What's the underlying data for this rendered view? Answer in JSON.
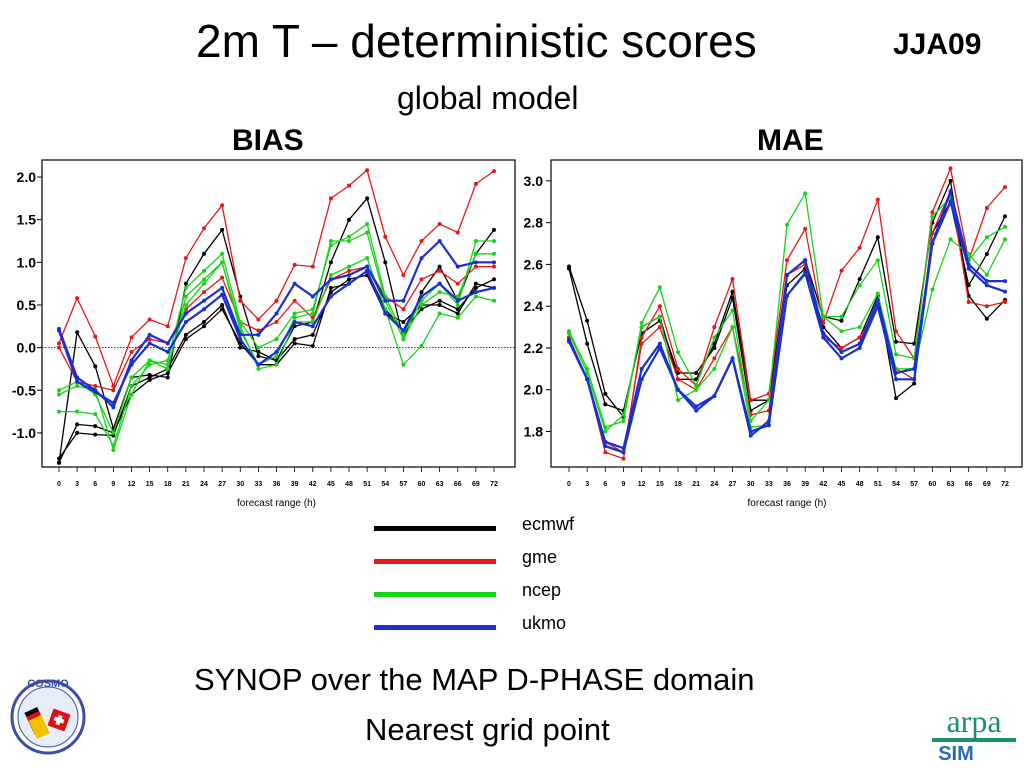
{
  "header": {
    "title": "2m T – deterministic scores",
    "subtitle": "global model",
    "season": "JJA09"
  },
  "footer": {
    "line1": "SYNOP over the MAP D-PHASE domain",
    "line2": "Nearest grid point"
  },
  "logos": {
    "left": "COSMO",
    "right_top": "arpa",
    "right_bottom": "SIM"
  },
  "colors": {
    "ecmwf": "#000000",
    "gme": "#e81818",
    "ncep": "#18d418",
    "ukmo": "#1a2fd0"
  },
  "legend": [
    {
      "label": "ecmwf",
      "color": "#000000"
    },
    {
      "label": "gme",
      "color": "#e81818"
    },
    {
      "label": "ncep",
      "color": "#18d418"
    },
    {
      "label": "ukmo",
      "color": "#1a2fd0"
    }
  ],
  "chart_data": [
    {
      "type": "line",
      "title": "BIAS",
      "xlabel": "forecast range (h)",
      "ylabel": "",
      "x": [
        0,
        3,
        6,
        9,
        12,
        15,
        18,
        21,
        24,
        27,
        30,
        33,
        36,
        39,
        42,
        45,
        48,
        51,
        54,
        57,
        60,
        63,
        66,
        69,
        72
      ],
      "x_tick_labels": [
        "0",
        "3",
        "6",
        "9",
        "12",
        "15",
        "18",
        "21",
        "24",
        "27",
        "30",
        "33",
        "36",
        "39",
        "42",
        "45",
        "48",
        "51",
        "54",
        "57",
        "60",
        "63",
        "66",
        "69",
        "72"
      ],
      "y_ticks": [
        2.0,
        1.5,
        1.0,
        0.5,
        0.0,
        -0.5,
        -1.0
      ],
      "y_tick_labels": [
        "2.0",
        "1.5",
        "1.0",
        "0.5",
        "0.0",
        "-0.5",
        "-1.0"
      ],
      "ylim": [
        -1.4,
        2.2
      ],
      "zero_line": true,
      "series": [
        {
          "name": "ecmwf",
          "values": [
            -1.35,
            0.18,
            -0.22,
            -0.95,
            -0.35,
            -0.32,
            -0.35,
            0.75,
            1.1,
            1.38,
            0.6,
            -0.1,
            -0.15,
            0.25,
            0.3,
            1.0,
            1.5,
            1.75,
            1.0,
            0.1,
            0.65,
            0.95,
            0.55,
            1.1,
            1.38
          ]
        },
        {
          "name": "ecmwf",
          "values": [
            -1.35,
            -0.9,
            -0.92,
            -1.0,
            -0.55,
            -0.38,
            -0.3,
            0.1,
            0.25,
            0.45,
            0.05,
            -0.2,
            -0.2,
            0.05,
            0.02,
            0.7,
            0.75,
            0.9,
            0.45,
            0.2,
            0.45,
            0.55,
            0.45,
            0.7,
            0.8
          ]
        },
        {
          "name": "ecmwf",
          "values": [
            -1.3,
            -1.0,
            -1.02,
            -1.03,
            -0.45,
            -0.35,
            -0.25,
            0.15,
            0.3,
            0.5,
            0.0,
            -0.05,
            -0.15,
            0.1,
            0.15,
            0.65,
            0.8,
            0.85,
            0.4,
            0.3,
            0.5,
            0.5,
            0.4,
            0.75,
            0.7
          ]
        },
        {
          "name": "gme",
          "values": [
            0.05,
            0.58,
            0.13,
            -0.45,
            0.12,
            0.33,
            0.25,
            1.05,
            1.4,
            1.67,
            0.55,
            0.33,
            0.55,
            0.97,
            0.95,
            1.75,
            1.9,
            2.08,
            1.3,
            0.85,
            1.25,
            1.45,
            1.35,
            1.92,
            2.07
          ]
        },
        {
          "name": "gme",
          "values": [
            0.0,
            -0.4,
            -0.45,
            -0.5,
            -0.05,
            0.1,
            0.05,
            0.45,
            0.65,
            0.82,
            0.3,
            0.2,
            0.3,
            0.55,
            0.35,
            0.8,
            0.9,
            0.95,
            0.6,
            0.45,
            0.8,
            0.9,
            0.75,
            0.95,
            0.95
          ]
        },
        {
          "name": "ncep",
          "values": [
            -0.55,
            -0.45,
            -0.5,
            -1.2,
            -0.55,
            -0.15,
            -0.2,
            0.5,
            0.75,
            1.0,
            0.25,
            -0.25,
            -0.2,
            0.3,
            0.3,
            0.85,
            0.95,
            1.05,
            0.45,
            -0.2,
            0.02,
            0.4,
            0.35,
            0.6,
            0.55
          ]
        },
        {
          "name": "ncep",
          "values": [
            -0.75,
            -0.75,
            -0.78,
            -1.15,
            -0.45,
            -0.2,
            -0.15,
            0.7,
            0.9,
            1.1,
            0.3,
            0.0,
            0.1,
            0.4,
            0.45,
            1.2,
            1.3,
            1.45,
            0.6,
            0.15,
            0.55,
            0.75,
            0.5,
            1.25,
            1.25
          ]
        },
        {
          "name": "ncep",
          "values": [
            -0.5,
            -0.4,
            -0.55,
            -1.0,
            -0.35,
            -0.15,
            -0.25,
            0.6,
            0.8,
            1.0,
            0.2,
            -0.2,
            -0.1,
            0.35,
            0.4,
            1.25,
            1.25,
            1.35,
            0.55,
            0.1,
            0.5,
            0.65,
            0.6,
            1.1,
            1.1
          ]
        },
        {
          "name": "ukmo",
          "values": [
            0.22,
            -0.35,
            -0.5,
            -0.7,
            -0.15,
            0.15,
            0.05,
            0.4,
            0.55,
            0.7,
            0.15,
            0.15,
            0.4,
            0.75,
            0.6,
            0.8,
            0.85,
            0.95,
            0.55,
            0.55,
            1.05,
            1.25,
            0.95,
            1.0,
            1.0
          ]
        },
        {
          "name": "ukmo",
          "values": [
            0.2,
            -0.4,
            -0.52,
            -0.65,
            -0.2,
            0.05,
            -0.05,
            0.3,
            0.45,
            0.62,
            0.1,
            -0.2,
            -0.05,
            0.3,
            0.25,
            0.6,
            0.75,
            0.9,
            0.4,
            0.2,
            0.6,
            0.75,
            0.55,
            0.65,
            0.7
          ]
        }
      ]
    },
    {
      "type": "line",
      "title": "MAE",
      "xlabel": "forecast range (h)",
      "ylabel": "",
      "x": [
        0,
        3,
        6,
        9,
        12,
        15,
        18,
        21,
        24,
        27,
        30,
        33,
        36,
        39,
        42,
        45,
        48,
        51,
        54,
        57,
        60,
        63,
        66,
        69,
        72
      ],
      "x_tick_labels": [
        "0",
        "3",
        "6",
        "9",
        "12",
        "15",
        "18",
        "21",
        "24",
        "27",
        "30",
        "33",
        "36",
        "39",
        "42",
        "45",
        "48",
        "51",
        "54",
        "57",
        "60",
        "63",
        "66",
        "69",
        "72"
      ],
      "y_ticks": [
        3.0,
        2.8,
        2.6,
        2.4,
        2.2,
        2.0,
        1.8
      ],
      "y_tick_labels": [
        "3.0",
        "2.8",
        "2.6",
        "2.4",
        "2.2",
        "2.0",
        "1.8"
      ],
      "ylim": [
        1.63,
        3.1
      ],
      "zero_line": false,
      "series": [
        {
          "name": "ecmwf",
          "values": [
            2.59,
            2.33,
            1.98,
            1.87,
            2.3,
            2.35,
            2.05,
            2.05,
            2.22,
            2.47,
            1.95,
            1.95,
            2.55,
            2.62,
            2.35,
            2.33,
            2.53,
            2.73,
            2.23,
            2.22,
            2.8,
            3.0,
            2.45,
            2.34,
            2.43
          ]
        },
        {
          "name": "ecmwf",
          "values": [
            2.58,
            2.22,
            1.93,
            1.9,
            2.27,
            2.33,
            2.08,
            2.08,
            2.2,
            2.44,
            1.9,
            1.95,
            2.5,
            2.58,
            2.3,
            2.2,
            2.25,
            2.45,
            1.96,
            2.03,
            2.75,
            2.9,
            2.5,
            2.65,
            2.83
          ]
        },
        {
          "name": "gme",
          "values": [
            2.25,
            2.05,
            1.7,
            1.67,
            2.25,
            2.4,
            2.1,
            2.02,
            2.3,
            2.53,
            1.95,
            1.98,
            2.62,
            2.77,
            2.32,
            2.57,
            2.68,
            2.91,
            2.28,
            2.15,
            2.85,
            3.06,
            2.62,
            2.87,
            2.97
          ]
        },
        {
          "name": "gme",
          "values": [
            2.25,
            2.05,
            1.75,
            1.7,
            2.22,
            2.3,
            2.05,
            2.0,
            2.15,
            2.3,
            1.88,
            1.9,
            2.55,
            2.6,
            2.25,
            2.2,
            2.25,
            2.4,
            2.1,
            2.05,
            2.75,
            2.95,
            2.42,
            2.4,
            2.42
          ]
        },
        {
          "name": "ncep",
          "values": [
            2.28,
            2.1,
            1.82,
            1.85,
            2.32,
            2.49,
            2.18,
            2.02,
            2.25,
            2.38,
            1.85,
            1.95,
            2.79,
            2.94,
            2.35,
            2.35,
            2.5,
            2.62,
            2.17,
            2.15,
            2.83,
            2.92,
            2.62,
            2.73,
            2.78
          ]
        },
        {
          "name": "ncep",
          "values": [
            2.27,
            2.08,
            1.8,
            1.88,
            2.3,
            2.35,
            1.95,
            2.0,
            2.1,
            2.3,
            1.82,
            1.83,
            2.45,
            2.55,
            2.35,
            2.28,
            2.3,
            2.46,
            2.1,
            2.1,
            2.48,
            2.72,
            2.65,
            2.55,
            2.72
          ]
        },
        {
          "name": "ukmo",
          "values": [
            2.24,
            2.05,
            1.75,
            1.72,
            2.1,
            2.22,
            2.0,
            1.9,
            1.97,
            2.15,
            1.8,
            1.83,
            2.45,
            2.56,
            2.25,
            2.15,
            2.2,
            2.4,
            2.05,
            2.05,
            2.7,
            2.9,
            2.58,
            2.5,
            2.47
          ]
        },
        {
          "name": "ukmo",
          "values": [
            2.23,
            2.05,
            1.73,
            1.7,
            2.05,
            2.2,
            2.0,
            1.92,
            1.97,
            2.15,
            1.78,
            1.85,
            2.55,
            2.62,
            2.27,
            2.18,
            2.22,
            2.43,
            2.08,
            2.1,
            2.7,
            2.95,
            2.6,
            2.52,
            2.52
          ]
        }
      ]
    }
  ]
}
